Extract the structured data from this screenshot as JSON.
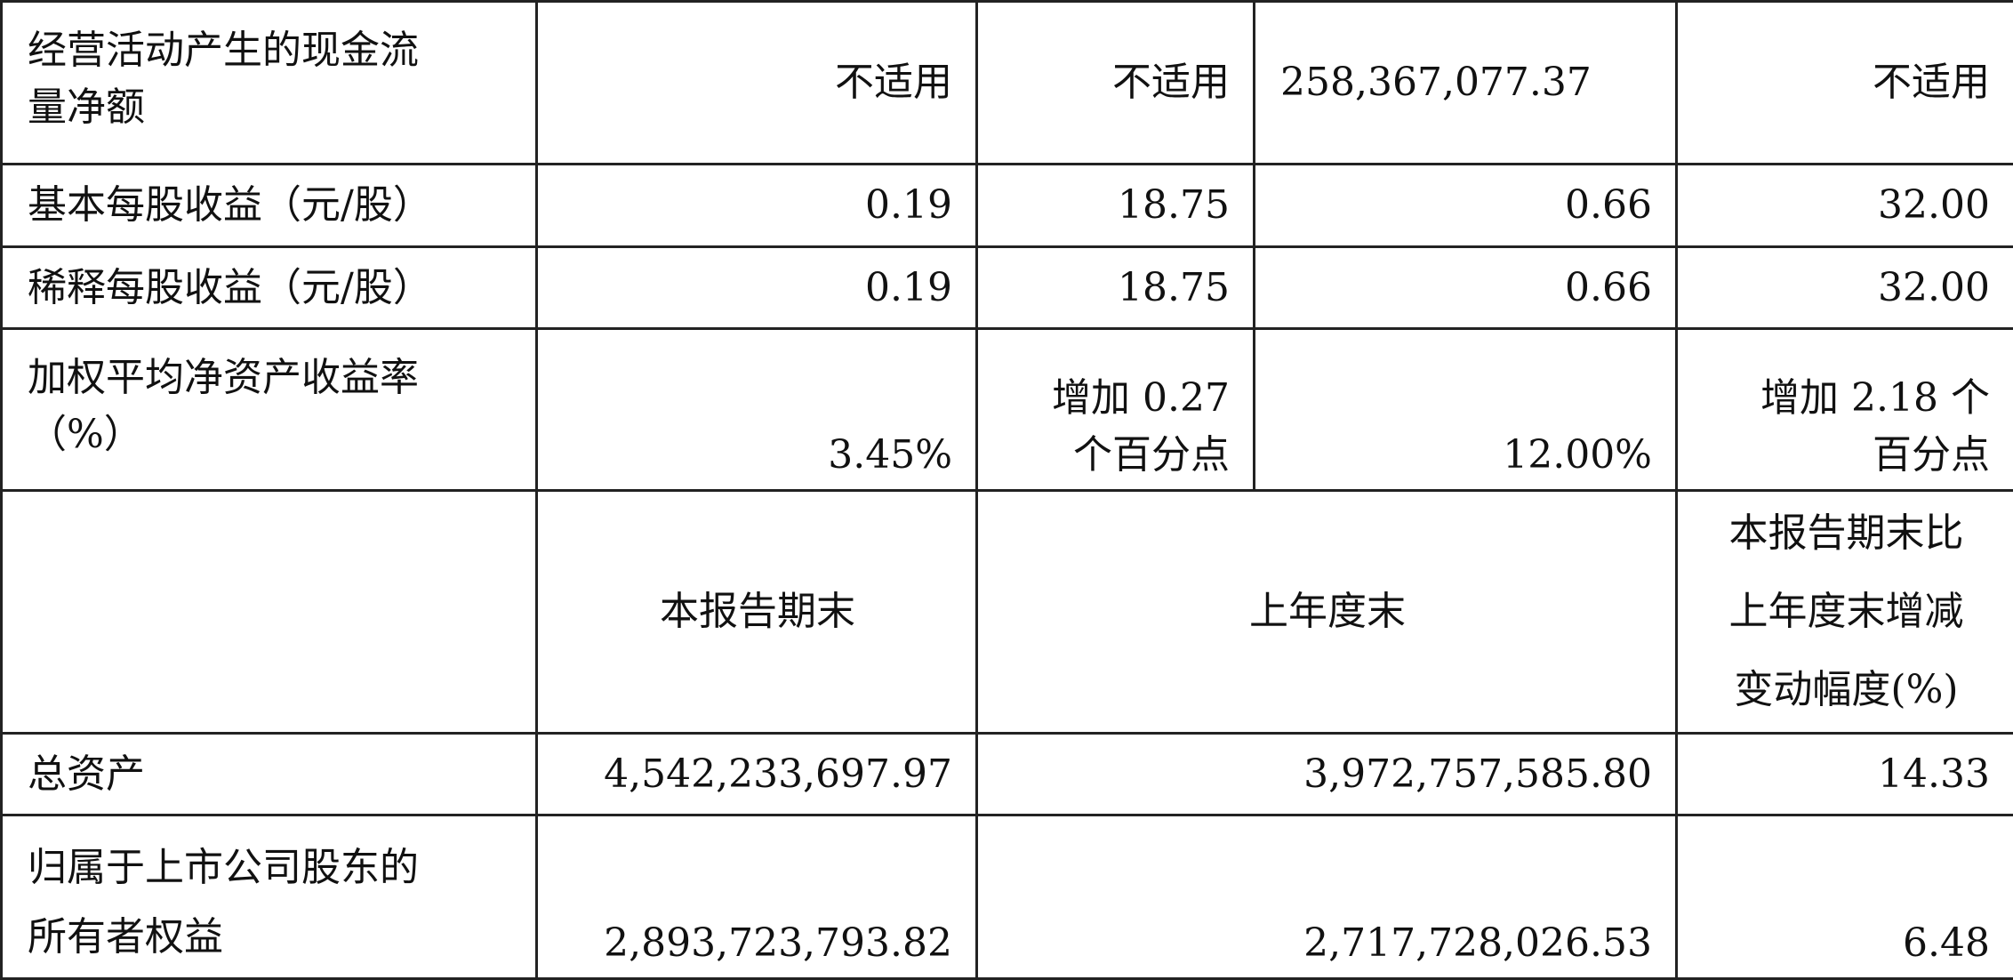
{
  "rows": {
    "cash_flow": {
      "label_lines": [
        "经营活动产生的现金流",
        "量净额"
      ],
      "values": [
        "不适用",
        "不适用",
        "258,367,077.37",
        "不适用"
      ]
    },
    "basic_eps": {
      "label": "基本每股收益（元/股）",
      "values": [
        "0.19",
        "18.75",
        "0.66",
        "32.00"
      ]
    },
    "diluted_eps": {
      "label": "稀释每股收益（元/股）",
      "values": [
        "0.19",
        "18.75",
        "0.66",
        "32.00"
      ]
    },
    "roe": {
      "label_lines": [
        "加权平均净资产收益率",
        "（%）"
      ],
      "v1": "3.45%",
      "v2_lines": [
        "增加 0.27",
        "个百分点"
      ],
      "v3": "12.00%",
      "v4_lines": [
        "增加 2.18 个",
        "百分点"
      ]
    }
  },
  "balance_header": {
    "current_period_end": "本报告期末",
    "prior_year_end": "上年度末",
    "change_lines": [
      "本报告期末比",
      "上年度末增减",
      "变动幅度(%)"
    ]
  },
  "balance_rows": {
    "total_assets": {
      "label": "总资产",
      "current": "4,542,233,697.97",
      "prior": "3,972,757,585.80",
      "change": "14.33"
    },
    "equity": {
      "label_lines": [
        "归属于上市公司股东的",
        "所有者权益"
      ],
      "current": "2,893,723,793.82",
      "prior": "2,717,728,026.53",
      "change": "6.48"
    }
  }
}
